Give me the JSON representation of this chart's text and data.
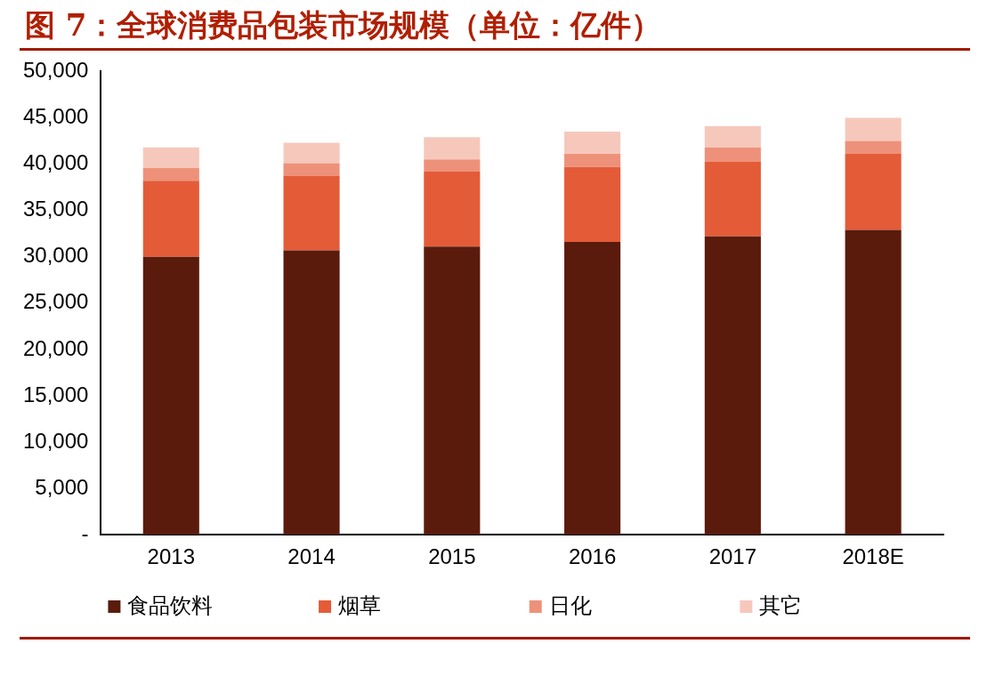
{
  "chart_data": {
    "type": "bar",
    "title": "图 7：全球消费品包装市场规模（单位：亿件）",
    "categories": [
      "2013",
      "2014",
      "2015",
      "2016",
      "2017",
      "2018E"
    ],
    "stacked": true,
    "legend": "bottom",
    "grid": false,
    "ylim": [
      0,
      50000
    ],
    "yticks": [
      {
        "value": 0,
        "label": "-"
      },
      {
        "value": 5000,
        "label": "5,000"
      },
      {
        "value": 10000,
        "label": "10,000"
      },
      {
        "value": 15000,
        "label": "15,000"
      },
      {
        "value": 20000,
        "label": "20,000"
      },
      {
        "value": 25000,
        "label": "25,000"
      },
      {
        "value": 30000,
        "label": "30,000"
      },
      {
        "value": 35000,
        "label": "35,000"
      },
      {
        "value": 40000,
        "label": "40,000"
      },
      {
        "value": 45000,
        "label": "45,000"
      },
      {
        "value": 50000,
        "label": "50,000"
      }
    ],
    "series": [
      {
        "name": "食品饮料",
        "color": "#5a1b0c",
        "values": [
          30000,
          30700,
          31100,
          31600,
          32200,
          32900
        ]
      },
      {
        "name": "烟草",
        "color": "#e45b38",
        "values": [
          8200,
          8000,
          8100,
          8100,
          8100,
          8200
        ]
      },
      {
        "name": "日化",
        "color": "#ee917a",
        "values": [
          1400,
          1400,
          1300,
          1400,
          1500,
          1400
        ]
      },
      {
        "name": "其它",
        "color": "#f6c8bc",
        "values": [
          2200,
          2200,
          2400,
          2400,
          2300,
          2500
        ]
      }
    ]
  }
}
